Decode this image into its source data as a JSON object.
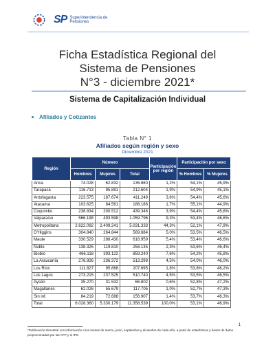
{
  "header": {
    "logo_sp": "SP",
    "logo_line1": "Superintendencia de",
    "logo_line2": "Pensiones"
  },
  "title": {
    "line1": "Ficha Estadística Regional del",
    "line2": "Sistema de Pensiones",
    "line3": "N°3 - diciembre 2021*"
  },
  "subtitle": "Sistema de Capitalización Individual",
  "section_bullet": "Afiliados y Cotizantes",
  "table": {
    "number": "Tabla N° 1",
    "title": "Afiliados según región y sexo",
    "date": "Diciembre 2021",
    "headers": {
      "region": "Región",
      "numero": "Número",
      "hombres": "Hombres",
      "mujeres": "Mujeres",
      "total": "Total",
      "participacion_region": "Participación por región",
      "participacion_sexo": "Participación por sexo",
      "pct_hombres": "% Hombres",
      "pct_mujeres": "% Mujeres"
    },
    "rows": [
      [
        "Arica",
        "74.028",
        "62.832",
        "136.860",
        "1,2%",
        "54,1%",
        "45,9%"
      ],
      [
        "Tarapacá",
        "116.713",
        "95.891",
        "212.604",
        "1,9%",
        "54,9%",
        "45,1%"
      ],
      [
        "Antofagasta",
        "223.575",
        "187.674",
        "411.249",
        "3,6%",
        "54,4%",
        "45,6%"
      ],
      [
        "Atacama",
        "103.625",
        "84.561",
        "188.186",
        "1,7%",
        "55,1%",
        "44,9%"
      ],
      [
        "Coquimbo",
        "238.834",
        "200.512",
        "439.346",
        "3,9%",
        "54,4%",
        "45,6%"
      ],
      [
        "Valparaíso",
        "566.198",
        "493.598",
        "1.059.796",
        "9,3%",
        "53,4%",
        "46,6%"
      ],
      [
        "Metropolitana",
        "2.622.092",
        "2.409.241",
        "5.031.333",
        "44,3%",
        "52,1%",
        "47,9%"
      ],
      [
        "O'Higgins",
        "304.840",
        "264.844",
        "569.684",
        "5,0%",
        "53,5%",
        "46,5%"
      ],
      [
        "Maule",
        "330.529",
        "288.430",
        "618.959",
        "5,4%",
        "53,4%",
        "46,6%"
      ],
      [
        "Ñuble",
        "138.325",
        "119.810",
        "258.135",
        "2,3%",
        "53,6%",
        "46,4%"
      ],
      [
        "Biobío",
        "466.118",
        "393.122",
        "859.240",
        "7,6%",
        "54,2%",
        "45,8%"
      ],
      [
        "La Araucanía",
        "276.926",
        "236.372",
        "513.298",
        "4,5%",
        "54,0%",
        "46,0%"
      ],
      [
        "Los Ríos",
        "111.827",
        "95.868",
        "207.695",
        "1,8%",
        "53,8%",
        "46,2%"
      ],
      [
        "Los Lagos",
        "273.215",
        "237.525",
        "510.740",
        "4,5%",
        "53,5%",
        "46,5%"
      ],
      [
        "Aysén",
        "35.270",
        "31.532",
        "66.802",
        "0,6%",
        "52,8%",
        "47,2%"
      ],
      [
        "Magallanes",
        "62.026",
        "55.679",
        "117.705",
        "1,0%",
        "52,7%",
        "47,3%"
      ],
      [
        "Sin inf.",
        "84.219",
        "72.688",
        "156.907",
        "1,4%",
        "53,7%",
        "46,3%"
      ],
      [
        "Total",
        "6.028.360",
        "5.330.179",
        "11.358.539",
        "100,0%",
        "53,1%",
        "46,9%"
      ]
    ]
  },
  "page_number": "1",
  "footnote": "*Publicación trimestral con información a los meses de marzo, junio, septiembre y diciembre de cada año, a partir de estadísticas y bases de datos proporcionadas por las AFP y el IPS.",
  "colors": {
    "brand_blue": "#1f4e9a",
    "table_header": "#1f3f7a",
    "bullet_teal": "#2e7d9a"
  }
}
